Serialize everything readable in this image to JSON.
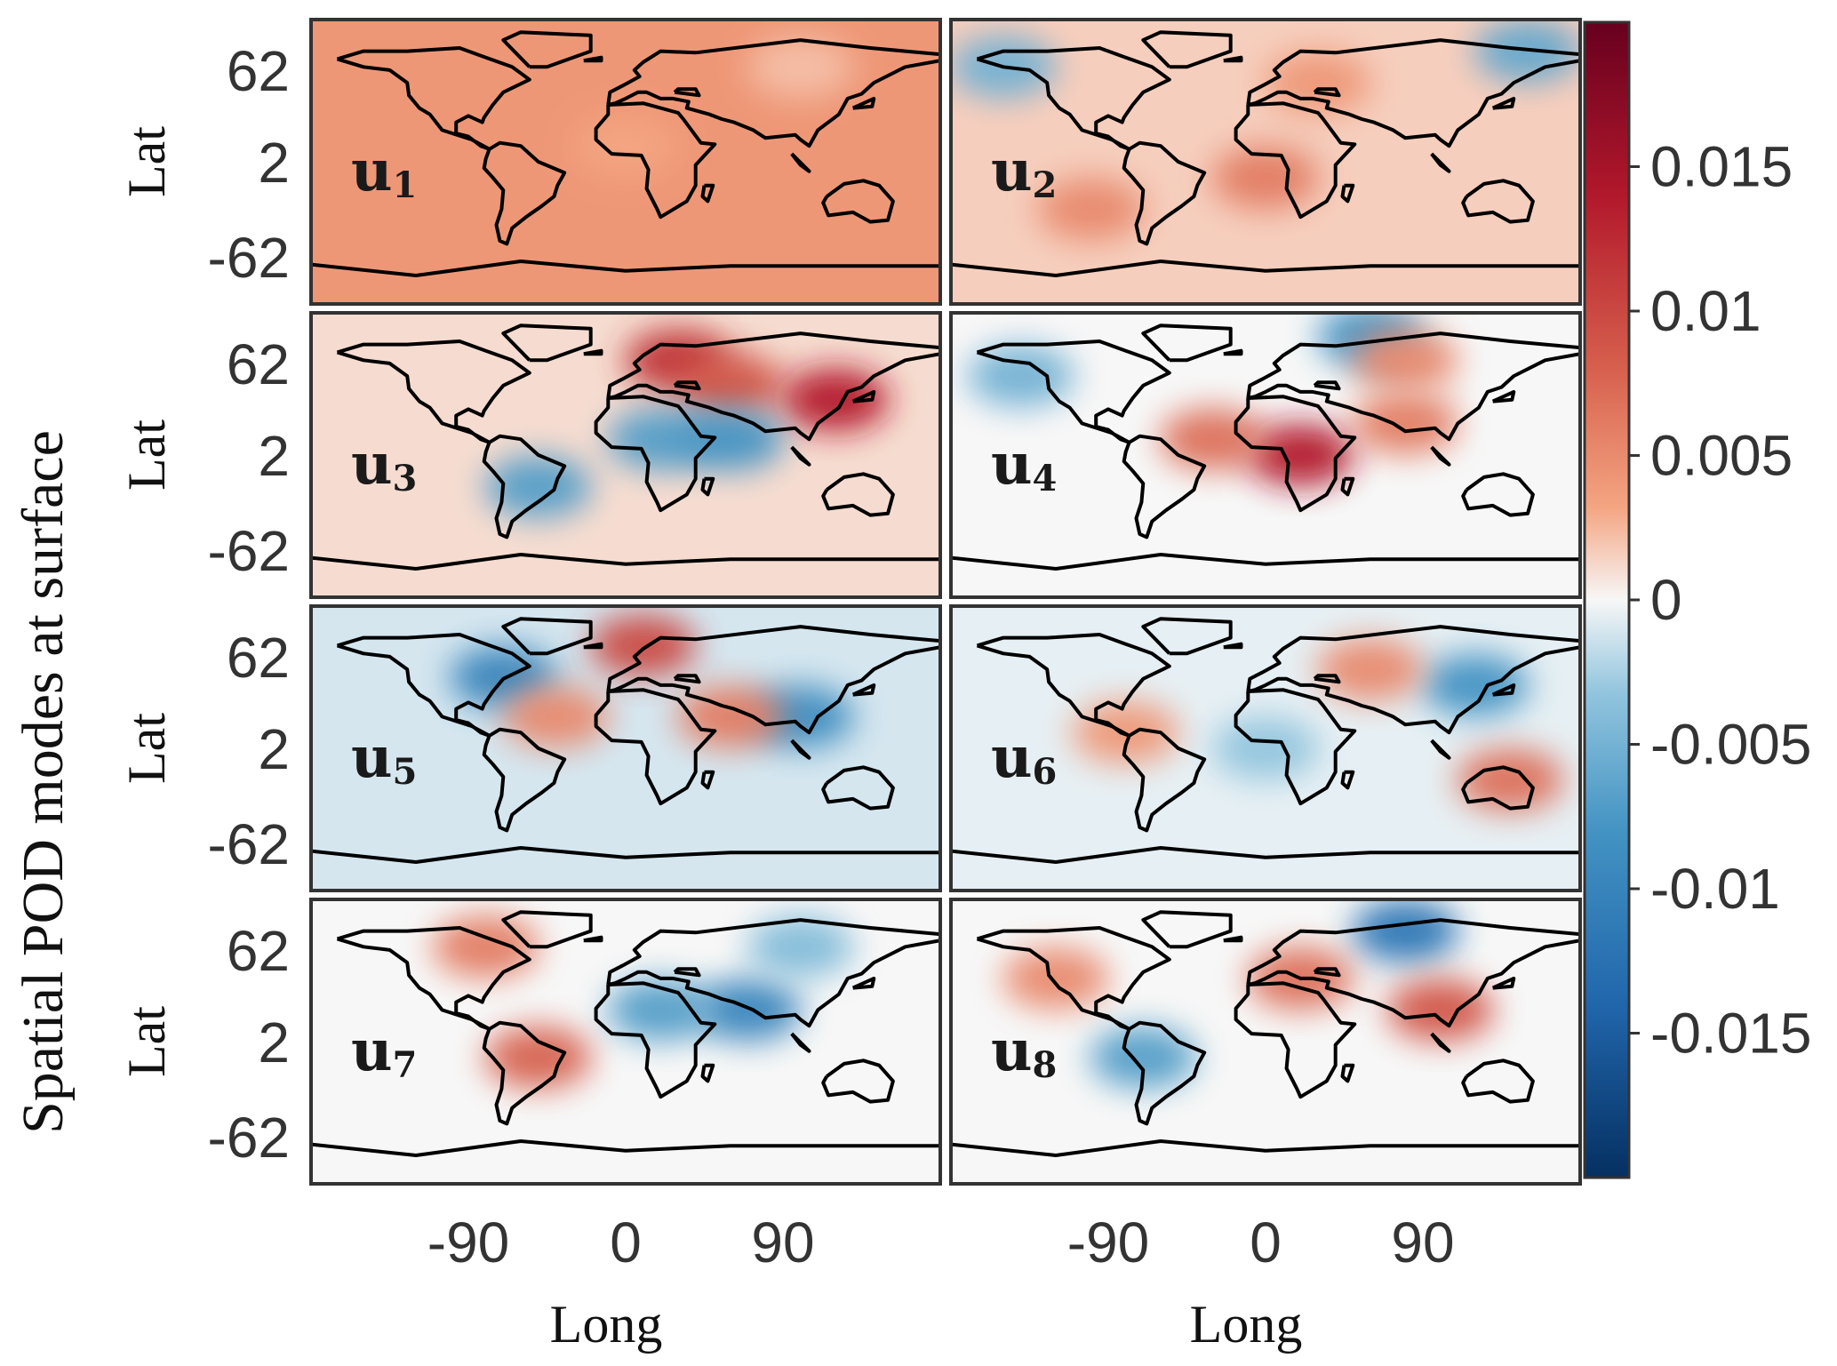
{
  "figure": {
    "title": "Spatial POD modes at surface",
    "ylabel": "Lat",
    "xlabel": "Long",
    "colors": {
      "positive_dark": "#67001f",
      "positive": "#d6604d",
      "neutral": "#f7f7f7",
      "negative": "#4393c3",
      "negative_dark": "#053061",
      "coastline": "#000000",
      "panel_border": "#333333"
    }
  },
  "chart_data": {
    "type": "heatmap",
    "title": "Spatial POD modes at surface",
    "xlabel": "Long",
    "ylabel": "Lat",
    "xticks": [
      "-90",
      "0",
      "90"
    ],
    "yticks": [
      "62",
      "2",
      "-62"
    ],
    "xlim": [
      -180,
      180
    ],
    "ylim": [
      -90,
      90
    ],
    "colorbar": {
      "colormap": "diverging red-blue",
      "range": [
        -0.02,
        0.02
      ],
      "ticks": [
        "0.015",
        "0.01",
        "0.005",
        "0",
        "-0.005",
        "-0.01",
        "-0.015"
      ]
    },
    "panels": [
      {
        "label": "u",
        "index": "1",
        "mean": 0.004,
        "pattern": [
          [
            100,
            60,
            0.002
          ],
          [
            0,
            10,
            0.003
          ]
        ]
      },
      {
        "label": "u",
        "index": "2",
        "mean": 0.0015,
        "pattern": [
          [
            150,
            70,
            -0.006
          ],
          [
            -150,
            60,
            -0.005
          ],
          [
            0,
            -10,
            0.006
          ],
          [
            -100,
            -30,
            0.005
          ],
          [
            30,
            50,
            0.004
          ]
        ]
      },
      {
        "label": "u",
        "index": "3",
        "mean": 0.001,
        "pattern": [
          [
            30,
            60,
            0.012
          ],
          [
            60,
            45,
            0.009
          ],
          [
            120,
            35,
            0.014
          ],
          [
            20,
            10,
            -0.007
          ],
          [
            60,
            10,
            -0.008
          ],
          [
            -50,
            -20,
            -0.007
          ]
        ]
      },
      {
        "label": "u",
        "index": "4",
        "mean": 0.0,
        "pattern": [
          [
            20,
            0,
            0.014
          ],
          [
            80,
            20,
            0.006
          ],
          [
            -30,
            10,
            0.007
          ],
          [
            60,
            75,
            -0.008
          ],
          [
            -140,
            50,
            -0.005
          ],
          [
            80,
            60,
            0.005
          ]
        ]
      },
      {
        "label": "u",
        "index": "5",
        "mean": -0.001,
        "pattern": [
          [
            -70,
            45,
            -0.01
          ],
          [
            10,
            65,
            0.01
          ],
          [
            100,
            20,
            -0.009
          ],
          [
            60,
            20,
            0.006
          ],
          [
            -40,
            20,
            0.005
          ]
        ]
      },
      {
        "label": "u",
        "index": "6",
        "mean": -0.0005,
        "pattern": [
          [
            120,
            40,
            -0.008
          ],
          [
            -80,
            10,
            0.004
          ],
          [
            140,
            -20,
            0.007
          ],
          [
            60,
            50,
            0.005
          ],
          [
            0,
            0,
            -0.003
          ]
        ]
      },
      {
        "label": "u",
        "index": "7",
        "mean": 0.0,
        "pattern": [
          [
            -50,
            -10,
            0.008
          ],
          [
            70,
            20,
            -0.01
          ],
          [
            20,
            20,
            -0.007
          ],
          [
            -80,
            60,
            0.006
          ],
          [
            100,
            60,
            -0.004
          ]
        ]
      },
      {
        "label": "u",
        "index": "8",
        "mean": 0.0,
        "pattern": [
          [
            80,
            70,
            -0.012
          ],
          [
            100,
            20,
            0.009
          ],
          [
            -70,
            -10,
            -0.007
          ],
          [
            20,
            40,
            0.007
          ],
          [
            -120,
            40,
            0.005
          ]
        ]
      }
    ]
  }
}
